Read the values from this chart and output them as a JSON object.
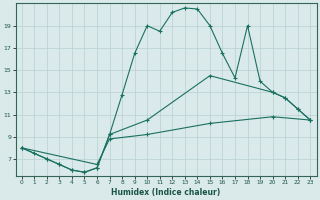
{
  "xlabel": "Humidex (Indice chaleur)",
  "bg_color": "#daeaea",
  "grid_color": "#b8d0d0",
  "line_color": "#1a7060",
  "xlim": [
    -0.5,
    23.5
  ],
  "ylim": [
    5.5,
    21.0
  ],
  "yticks": [
    7,
    9,
    11,
    13,
    15,
    17,
    19
  ],
  "xticks": [
    0,
    1,
    2,
    3,
    4,
    5,
    6,
    7,
    8,
    9,
    10,
    11,
    12,
    13,
    14,
    15,
    16,
    17,
    18,
    19,
    20,
    21,
    22,
    23
  ],
  "curve1_x": [
    0,
    1,
    2,
    3,
    4,
    5,
    6,
    7,
    8,
    9,
    10,
    11,
    12,
    13,
    14,
    15,
    16,
    17,
    18,
    19,
    20,
    21,
    22,
    23
  ],
  "curve1_y": [
    8.0,
    7.5,
    7.0,
    6.5,
    6.0,
    5.8,
    6.2,
    9.2,
    12.8,
    16.5,
    19.0,
    18.5,
    20.2,
    20.6,
    20.5,
    19.0,
    16.5,
    14.3,
    19.0,
    14.0,
    13.0,
    12.5,
    11.5,
    10.5
  ],
  "curve2_x": [
    0,
    2,
    3,
    4,
    5,
    6,
    7,
    10,
    15,
    20,
    21,
    22,
    23
  ],
  "curve2_y": [
    8.0,
    7.0,
    6.5,
    6.0,
    5.8,
    6.2,
    9.2,
    10.5,
    14.5,
    13.0,
    12.5,
    11.5,
    10.5
  ],
  "curve3_x": [
    0,
    6,
    7,
    10,
    15,
    20,
    23
  ],
  "curve3_y": [
    8.0,
    6.5,
    8.8,
    9.2,
    10.2,
    10.8,
    10.5
  ]
}
